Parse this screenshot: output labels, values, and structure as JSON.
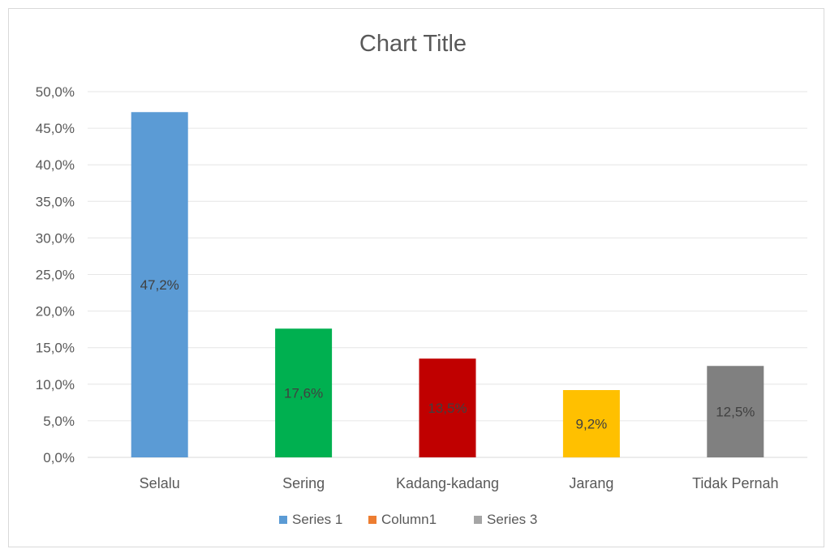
{
  "chart_data": {
    "type": "bar",
    "title": "Chart Title",
    "categories": [
      "Selalu",
      "Sering",
      "Kadang-kadang",
      "Jarang",
      "Tidak Pernah"
    ],
    "values": [
      47.2,
      17.6,
      13.5,
      9.2,
      12.5
    ],
    "data_labels": [
      "47,2%",
      "17,6%",
      "13,5%",
      "9,2%",
      "12,5%"
    ],
    "bar_colors": [
      "#5b9bd5",
      "#00b050",
      "#c00000",
      "#ffc000",
      "#808080"
    ],
    "ylim": [
      0,
      50
    ],
    "yticks": [
      0,
      5,
      10,
      15,
      20,
      25,
      30,
      35,
      40,
      45,
      50
    ],
    "ytick_labels": [
      "0,0%",
      "5,0%",
      "10,0%",
      "15,0%",
      "20,0%",
      "25,0%",
      "30,0%",
      "35,0%",
      "40,0%",
      "45,0%",
      "50,0%"
    ],
    "grid": true,
    "legend_position": "bottom",
    "legend": [
      {
        "name": "Series 1",
        "color": "#5b9bd5"
      },
      {
        "name": "Column1",
        "color": "#ed7d31"
      },
      {
        "name": "Series 3",
        "color": "#a5a5a5"
      }
    ]
  }
}
